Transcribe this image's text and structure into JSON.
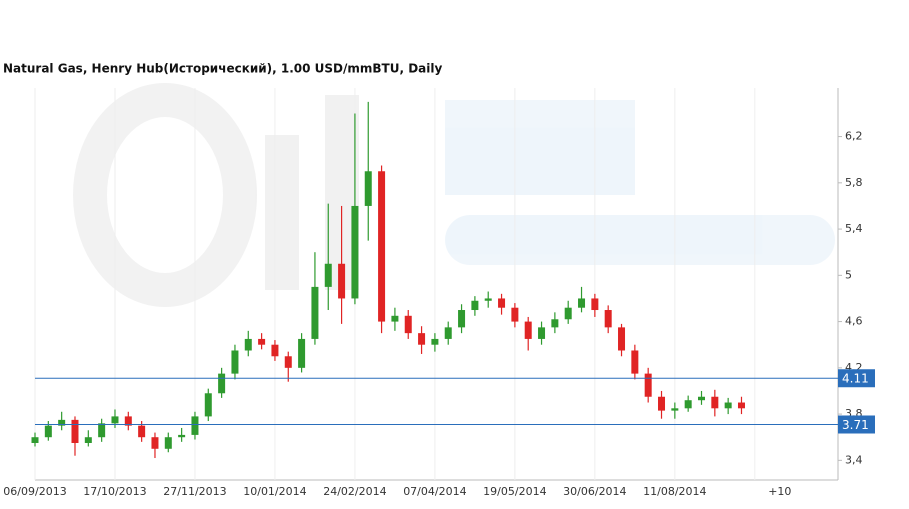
{
  "chart_data": {
    "type": "candlestick",
    "title": "Natural Gas, Henry Hub(Исторический), 1.00 USD/mmBTU, Daily",
    "categories": [
      "06/09/2013",
      null,
      null,
      null,
      null,
      null,
      "17/10/2013",
      null,
      null,
      null,
      null,
      null,
      "27/11/2013",
      null,
      null,
      null,
      null,
      null,
      "10/01/2014",
      null,
      null,
      null,
      null,
      null,
      "24/02/2014",
      null,
      null,
      null,
      null,
      null,
      "07/04/2014",
      null,
      null,
      null,
      null,
      null,
      "19/05/2014",
      null,
      null,
      null,
      null,
      null,
      "30/06/2014",
      null,
      null,
      null,
      null,
      null,
      "11/08/2014",
      null,
      null,
      null,
      null,
      null,
      "+10"
    ],
    "open": [
      3.55,
      3.6,
      3.7,
      3.75,
      3.55,
      3.6,
      3.72,
      3.78,
      3.7,
      3.6,
      3.5,
      3.6,
      3.62,
      3.78,
      3.98,
      4.15,
      4.35,
      4.45,
      4.4,
      4.3,
      4.2,
      4.45,
      4.9,
      5.1,
      4.8,
      5.6,
      5.9,
      4.6,
      4.65,
      4.5,
      4.4,
      4.45,
      4.55,
      4.7,
      4.78,
      4.8,
      4.72,
      4.6,
      4.45,
      4.55,
      4.62,
      4.72,
      4.8,
      4.7,
      4.55,
      4.35,
      4.15,
      3.95,
      3.83,
      3.85,
      3.92,
      3.95,
      3.85,
      3.9,
      null
    ],
    "high": [
      3.64,
      3.74,
      3.82,
      3.78,
      3.66,
      3.76,
      3.84,
      3.82,
      3.74,
      3.64,
      3.64,
      3.68,
      3.82,
      4.02,
      4.2,
      4.4,
      4.52,
      4.5,
      4.44,
      4.34,
      4.5,
      5.2,
      5.62,
      5.6,
      6.4,
      6.5,
      5.95,
      4.72,
      4.7,
      4.56,
      4.5,
      4.6,
      4.75,
      4.82,
      4.86,
      4.84,
      4.76,
      4.64,
      4.6,
      4.68,
      4.78,
      4.9,
      4.84,
      4.74,
      4.58,
      4.4,
      4.2,
      4.0,
      3.9,
      3.96,
      4.0,
      4.01,
      3.94,
      3.95,
      null
    ],
    "low": [
      3.52,
      3.57,
      3.66,
      3.44,
      3.52,
      3.56,
      3.68,
      3.66,
      3.56,
      3.42,
      3.47,
      3.56,
      3.58,
      3.74,
      3.94,
      4.1,
      4.3,
      4.36,
      4.26,
      4.08,
      4.16,
      4.4,
      4.7,
      4.58,
      4.75,
      5.3,
      4.5,
      4.52,
      4.45,
      4.32,
      4.34,
      4.4,
      4.5,
      4.65,
      4.72,
      4.66,
      4.55,
      4.35,
      4.4,
      4.5,
      4.58,
      4.68,
      4.64,
      4.5,
      4.3,
      4.1,
      3.9,
      3.76,
      3.76,
      3.82,
      3.88,
      3.78,
      3.8,
      3.8,
      null
    ],
    "close": [
      3.6,
      3.7,
      3.75,
      3.55,
      3.6,
      3.72,
      3.78,
      3.7,
      3.6,
      3.5,
      3.6,
      3.62,
      3.78,
      3.98,
      4.15,
      4.35,
      4.45,
      4.4,
      4.3,
      4.2,
      4.45,
      4.9,
      5.1,
      4.8,
      5.6,
      5.9,
      4.6,
      4.65,
      4.5,
      4.4,
      4.45,
      4.55,
      4.7,
      4.78,
      4.8,
      4.72,
      4.6,
      4.45,
      4.55,
      4.62,
      4.72,
      4.8,
      4.7,
      4.55,
      4.35,
      4.15,
      3.95,
      3.83,
      3.85,
      3.92,
      3.95,
      3.85,
      3.9,
      3.85,
      null
    ],
    "up_color": "#2f9a2f",
    "down_color": "#e02424",
    "ylim": [
      3.23,
      6.62
    ],
    "yticks": [
      {
        "value": 3.4,
        "label": "3,4"
      },
      {
        "value": 3.8,
        "label": "3,8"
      },
      {
        "value": 4.2,
        "label": "4,2"
      },
      {
        "value": 4.6,
        "label": "4,6"
      },
      5,
      {
        "value": 5.4,
        "label": "5,4"
      },
      {
        "value": 5.8,
        "label": "5,8"
      },
      {
        "value": 6.2,
        "label": "6,2"
      }
    ],
    "hlines": [
      {
        "value": 4.11
      },
      {
        "value": 3.71
      }
    ],
    "hline_color": "#2a6ebb",
    "grid": true
  }
}
